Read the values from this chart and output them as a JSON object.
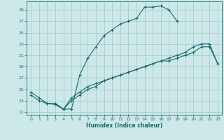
{
  "title": "",
  "xlabel": "Humidex (Indice chaleur)",
  "bg_color": "#cce8e8",
  "grid_color": "#aacccc",
  "line_color": "#1a6b6b",
  "xlim": [
    -0.5,
    23.5
  ],
  "ylim": [
    10.5,
    30.5
  ],
  "yticks": [
    11,
    13,
    15,
    17,
    19,
    21,
    23,
    25,
    27,
    29
  ],
  "xticks": [
    0,
    1,
    2,
    3,
    4,
    5,
    6,
    7,
    8,
    9,
    10,
    11,
    12,
    13,
    14,
    15,
    16,
    17,
    18,
    19,
    20,
    21,
    22,
    23
  ],
  "curve1_x": [
    0,
    1,
    2,
    3,
    4,
    5,
    6,
    7,
    8,
    9,
    10,
    11,
    12,
    13,
    14,
    15,
    16,
    17,
    18
  ],
  "curve1_y": [
    14,
    13,
    12.5,
    12.3,
    11.5,
    11.5,
    17.5,
    20.5,
    22.5,
    24.5,
    25.5,
    26.5,
    27,
    27.5,
    29.5,
    29.5,
    29.7,
    29,
    27
  ],
  "curve2_x": [
    0,
    1,
    2,
    3,
    4,
    5,
    6,
    7,
    8,
    9,
    10,
    11,
    12,
    13,
    14,
    15,
    16,
    17,
    18,
    19,
    20,
    21,
    22,
    23
  ],
  "curve2_y": [
    14.5,
    13.5,
    12.5,
    12.5,
    11.5,
    13.5,
    14.5,
    15.5,
    16,
    16.5,
    17,
    17.5,
    18,
    18.5,
    19,
    19.5,
    20,
    20.5,
    21,
    21.5,
    22.5,
    23,
    23,
    19.5
  ],
  "curve3_x": [
    3,
    4,
    5,
    6,
    7,
    8,
    9,
    10,
    11,
    12,
    13,
    14,
    15,
    16,
    17,
    18,
    19,
    20,
    21,
    22,
    23
  ],
  "curve3_y": [
    12.5,
    11.5,
    13,
    14,
    15,
    15.5,
    16.5,
    17,
    17.5,
    18,
    18.5,
    19,
    19.5,
    20,
    20,
    20.5,
    21,
    21.5,
    22.5,
    22.5,
    19.5
  ]
}
